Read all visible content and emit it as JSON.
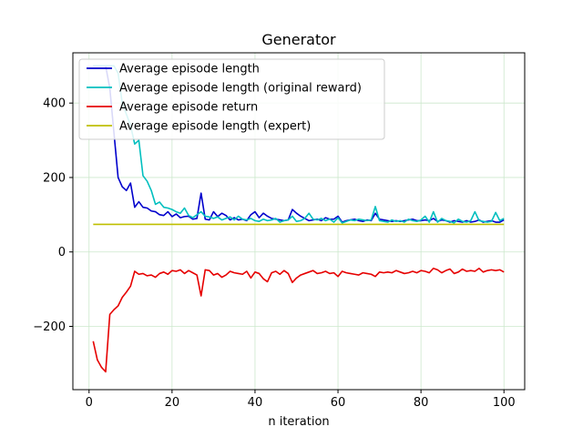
{
  "chart_data": {
    "type": "line",
    "title": "Generator",
    "xlabel": "n iteration",
    "ylabel": "",
    "xlim": [
      -3.9,
      105
    ],
    "ylim": [
      -370,
      535
    ],
    "xticks": [
      0,
      20,
      40,
      60,
      80,
      100
    ],
    "yticks": [
      -200,
      0,
      200,
      400
    ],
    "ytick_labels": [
      "−200",
      "0",
      "200",
      "400"
    ],
    "grid": true,
    "legend_position": "top-left",
    "x": [
      1,
      2,
      3,
      4,
      5,
      6,
      7,
      8,
      9,
      10,
      11,
      12,
      13,
      14,
      15,
      16,
      17,
      18,
      19,
      20,
      21,
      22,
      23,
      24,
      25,
      26,
      27,
      28,
      29,
      30,
      31,
      32,
      33,
      34,
      35,
      36,
      37,
      38,
      39,
      40,
      41,
      42,
      43,
      44,
      45,
      46,
      47,
      48,
      49,
      50,
      51,
      52,
      53,
      54,
      55,
      56,
      57,
      58,
      59,
      60,
      61,
      62,
      63,
      64,
      65,
      66,
      67,
      68,
      69,
      70,
      71,
      72,
      73,
      74,
      75,
      76,
      77,
      78,
      79,
      80,
      81,
      82,
      83,
      84,
      85,
      86,
      87,
      88,
      89,
      90,
      91,
      92,
      93,
      94,
      95,
      96,
      97,
      98,
      99,
      100
    ],
    "series": [
      {
        "name": "Average episode length",
        "color": "#0000cc",
        "values": [
          500,
          500,
          500,
          500,
          440,
          320,
          200,
          175,
          165,
          185,
          120,
          135,
          120,
          118,
          110,
          108,
          100,
          98,
          108,
          95,
          102,
          92,
          95,
          96,
          88,
          90,
          158,
          88,
          86,
          108,
          95,
          104,
          98,
          86,
          92,
          86,
          88,
          84,
          100,
          108,
          92,
          104,
          96,
          90,
          88,
          86,
          84,
          86,
          114,
          104,
          96,
          90,
          84,
          86,
          88,
          84,
          92,
          88,
          88,
          96,
          80,
          84,
          86,
          88,
          84,
          82,
          86,
          84,
          104,
          88,
          86,
          84,
          82,
          84,
          82,
          84,
          86,
          88,
          84,
          84,
          86,
          84,
          90,
          82,
          86,
          84,
          80,
          84,
          82,
          80,
          84,
          80,
          82,
          86,
          80,
          82,
          84,
          80,
          80,
          86
        ]
      },
      {
        "name": "Average episode length (original reward)",
        "color": "#00bfbf",
        "values": [
          500,
          500,
          500,
          500,
          500,
          500,
          480,
          400,
          370,
          340,
          290,
          300,
          205,
          190,
          165,
          128,
          134,
          120,
          118,
          114,
          108,
          104,
          118,
          98,
          92,
          100,
          108,
          96,
          94,
          90,
          94,
          86,
          90,
          94,
          86,
          96,
          88,
          86,
          90,
          84,
          82,
          88,
          84,
          86,
          90,
          80,
          84,
          86,
          96,
          82,
          84,
          90,
          104,
          88,
          86,
          90,
          84,
          88,
          80,
          92,
          78,
          82,
          86,
          84,
          88,
          86,
          84,
          86,
          122,
          84,
          82,
          80,
          86,
          82,
          84,
          80,
          88,
          84,
          82,
          86,
          96,
          80,
          108,
          80,
          90,
          84,
          82,
          78,
          88,
          82,
          80,
          84,
          108,
          84,
          82,
          80,
          82,
          106,
          84,
          90
        ]
      },
      {
        "name": "Average episode return",
        "color": "#e60000",
        "values": [
          -240,
          -290,
          -310,
          -322,
          -168,
          -155,
          -145,
          -122,
          -108,
          -92,
          -52,
          -60,
          -58,
          -64,
          -62,
          -68,
          -58,
          -54,
          -60,
          -50,
          -52,
          -48,
          -58,
          -50,
          -56,
          -62,
          -118,
          -48,
          -50,
          -62,
          -58,
          -68,
          -62,
          -52,
          -56,
          -58,
          -60,
          -52,
          -70,
          -54,
          -58,
          -72,
          -80,
          -56,
          -52,
          -60,
          -50,
          -58,
          -82,
          -70,
          -62,
          -58,
          -54,
          -50,
          -58,
          -56,
          -52,
          -58,
          -56,
          -66,
          -52,
          -56,
          -58,
          -60,
          -62,
          -56,
          -58,
          -60,
          -66,
          -54,
          -56,
          -54,
          -56,
          -50,
          -54,
          -58,
          -56,
          -52,
          -56,
          -50,
          -52,
          -56,
          -44,
          -48,
          -56,
          -50,
          -46,
          -58,
          -54,
          -46,
          -52,
          -50,
          -52,
          -44,
          -54,
          -50,
          -48,
          -50,
          -48,
          -54
        ]
      },
      {
        "name": "Average episode length (expert)",
        "color": "#bfbf00",
        "values": [
          74,
          74,
          74,
          74,
          74,
          74,
          74,
          74,
          74,
          74,
          74,
          74,
          74,
          74,
          74,
          74,
          74,
          74,
          74,
          74,
          74,
          74,
          74,
          74,
          74,
          74,
          74,
          74,
          74,
          74,
          74,
          74,
          74,
          74,
          74,
          74,
          74,
          74,
          74,
          74,
          74,
          74,
          74,
          74,
          74,
          74,
          74,
          74,
          74,
          74,
          74,
          74,
          74,
          74,
          74,
          74,
          74,
          74,
          74,
          74,
          74,
          74,
          74,
          74,
          74,
          74,
          74,
          74,
          74,
          74,
          74,
          74,
          74,
          74,
          74,
          74,
          74,
          74,
          74,
          74,
          74,
          74,
          74,
          74,
          74,
          74,
          74,
          74,
          74,
          74,
          74,
          74,
          74,
          74,
          74,
          74,
          74,
          74,
          74,
          74
        ]
      }
    ]
  }
}
